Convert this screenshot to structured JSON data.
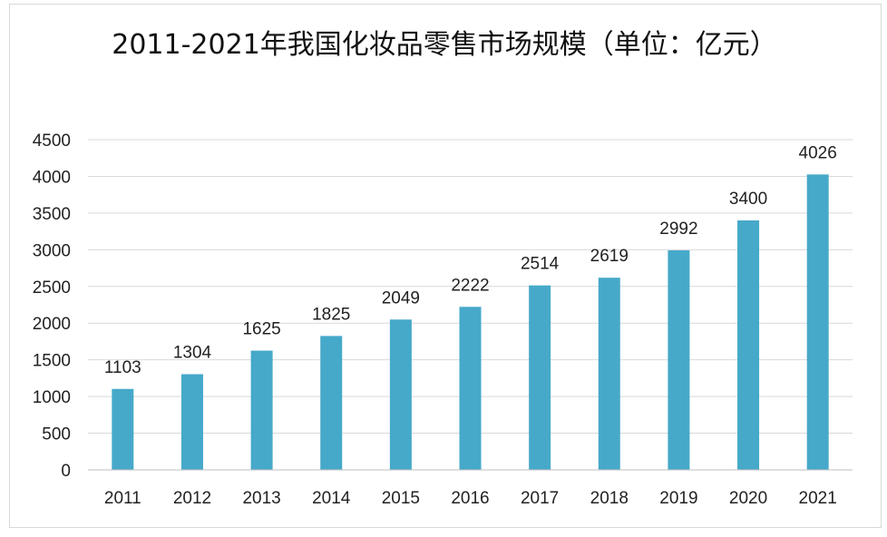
{
  "chart_data": {
    "type": "bar",
    "title": "2011-2021年我国化妆品零售市场规模（单位：亿元）",
    "categories": [
      "2011",
      "2012",
      "2013",
      "2014",
      "2015",
      "2016",
      "2017",
      "2018",
      "2019",
      "2020",
      "2021"
    ],
    "values": [
      1103,
      1304,
      1625,
      1825,
      2049,
      2222,
      2514,
      2619,
      2992,
      3400,
      4026
    ],
    "ylim": [
      0,
      4500
    ],
    "yticks": [
      0,
      500,
      1000,
      1500,
      2000,
      2500,
      3000,
      3500,
      4000,
      4500
    ],
    "grid": true,
    "legend": "none",
    "bar_color": "#46a9c9",
    "xlabel": "",
    "ylabel": ""
  }
}
